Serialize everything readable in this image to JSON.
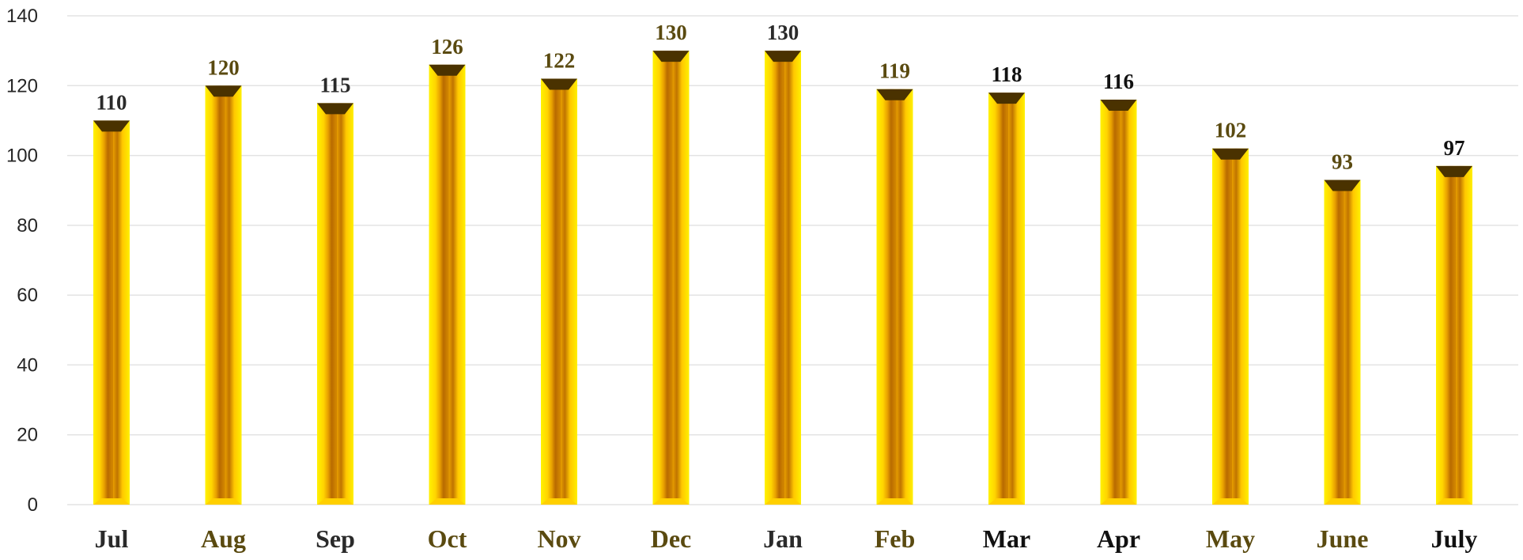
{
  "chart_data": {
    "type": "bar",
    "categories": [
      "Jul",
      "Aug",
      "Sep",
      "Oct",
      "Nov",
      "Dec",
      "Jan",
      "Feb",
      "Mar",
      "Apr",
      "May",
      "June",
      "July"
    ],
    "values": [
      110,
      120,
      115,
      126,
      122,
      130,
      130,
      119,
      118,
      116,
      102,
      93,
      97
    ],
    "data_labels": [
      "110",
      "120",
      "115",
      "126",
      "122",
      "130",
      "130",
      "119",
      "118",
      "116",
      "102",
      "93",
      "97"
    ],
    "title": "",
    "xlabel": "",
    "ylabel": "",
    "ylim": [
      0,
      140
    ],
    "yticks": [
      0,
      20,
      40,
      60,
      80,
      100,
      120,
      140
    ],
    "grid": true,
    "colors": {
      "bar_light": "#fff200",
      "bar_mid": "#f5b800",
      "bar_dark": "#b86a00",
      "bar_cap": "#4a3200",
      "gridline": "#e3e3e3",
      "label_dark": "#2a2a2a",
      "label_muted": "#5a4a10"
    },
    "label_tones": [
      "dark",
      "muted",
      "dark",
      "muted",
      "muted",
      "muted",
      "dark",
      "muted",
      "black",
      "black",
      "muted",
      "muted",
      "black"
    ]
  }
}
